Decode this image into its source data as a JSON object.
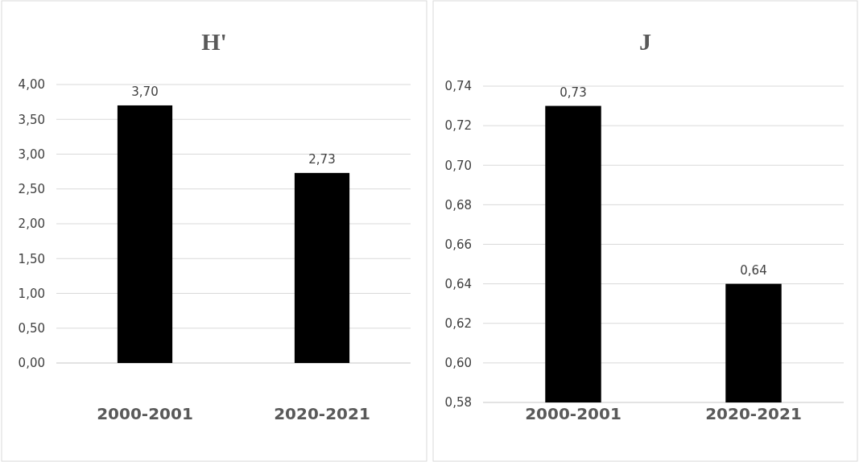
{
  "chart_data": [
    {
      "type": "bar",
      "title": "H'",
      "categories": [
        "2000-2001",
        "2020-2021"
      ],
      "values": [
        3.7,
        2.73
      ],
      "value_labels": [
        "3,70",
        "2,73"
      ],
      "color": "#000000",
      "ylim": [
        0,
        4
      ],
      "yticks": [
        {
          "value": 0,
          "label": "0,00"
        },
        {
          "value": 0.5,
          "label": "0,50"
        },
        {
          "value": 1,
          "label": "1,00"
        },
        {
          "value": 1.5,
          "label": "1,50"
        },
        {
          "value": 2,
          "label": "2,00"
        },
        {
          "value": 2.5,
          "label": "2,50"
        },
        {
          "value": 3,
          "label": "3,00"
        },
        {
          "value": 3.5,
          "label": "3,50"
        },
        {
          "value": 4,
          "label": "4,00"
        }
      ],
      "grid": "y"
    },
    {
      "type": "bar",
      "title": "J",
      "categories": [
        "2000-2001",
        "2020-2021"
      ],
      "values": [
        0.73,
        0.64
      ],
      "value_labels": [
        "0,73",
        "0,64"
      ],
      "color": "#000000",
      "ylim": [
        0.58,
        0.74
      ],
      "yticks": [
        {
          "value": 0.58,
          "label": "0,58"
        },
        {
          "value": 0.6,
          "label": "0,60"
        },
        {
          "value": 0.62,
          "label": "0,62"
        },
        {
          "value": 0.64,
          "label": "0,64"
        },
        {
          "value": 0.66,
          "label": "0,66"
        },
        {
          "value": 0.68,
          "label": "0,68"
        },
        {
          "value": 0.7,
          "label": "0,70"
        },
        {
          "value": 0.72,
          "label": "0,72"
        },
        {
          "value": 0.74,
          "label": "0,74"
        }
      ],
      "grid": "y"
    }
  ]
}
